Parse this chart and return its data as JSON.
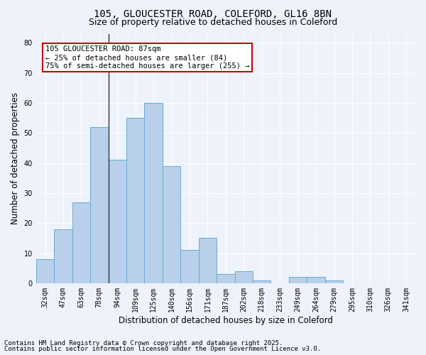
{
  "title_line1": "105, GLOUCESTER ROAD, COLEFORD, GL16 8BN",
  "title_line2": "Size of property relative to detached houses in Coleford",
  "xlabel": "Distribution of detached houses by size in Coleford",
  "ylabel": "Number of detached properties",
  "categories": [
    "32sqm",
    "47sqm",
    "63sqm",
    "78sqm",
    "94sqm",
    "109sqm",
    "125sqm",
    "140sqm",
    "156sqm",
    "171sqm",
    "187sqm",
    "202sqm",
    "218sqm",
    "233sqm",
    "249sqm",
    "264sqm",
    "279sqm",
    "295sqm",
    "310sqm",
    "326sqm",
    "341sqm"
  ],
  "values": [
    8,
    18,
    27,
    52,
    41,
    55,
    60,
    39,
    11,
    15,
    3,
    4,
    1,
    0,
    2,
    2,
    1,
    0,
    0,
    0,
    0
  ],
  "bar_color": "#b8d0ea",
  "bar_edge_color": "#6aaad4",
  "background_color": "#eef2fb",
  "grid_color": "#ffffff",
  "annotation_box_text": "105 GLOUCESTER ROAD: 87sqm\n← 25% of detached houses are smaller (84)\n75% of semi-detached houses are larger (255) →",
  "annotation_box_color": "#ffffff",
  "annotation_box_edge_color": "#cc0000",
  "vline_color": "#333333",
  "ylim": [
    0,
    83
  ],
  "yticks": [
    0,
    10,
    20,
    30,
    40,
    50,
    60,
    70,
    80
  ],
  "footnote1": "Contains HM Land Registry data © Crown copyright and database right 2025.",
  "footnote2": "Contains public sector information licensed under the Open Government Licence v3.0.",
  "title_fontsize": 10,
  "subtitle_fontsize": 9,
  "axis_label_fontsize": 8.5,
  "tick_fontsize": 7,
  "annotation_fontsize": 7.5,
  "footnote_fontsize": 6.5
}
